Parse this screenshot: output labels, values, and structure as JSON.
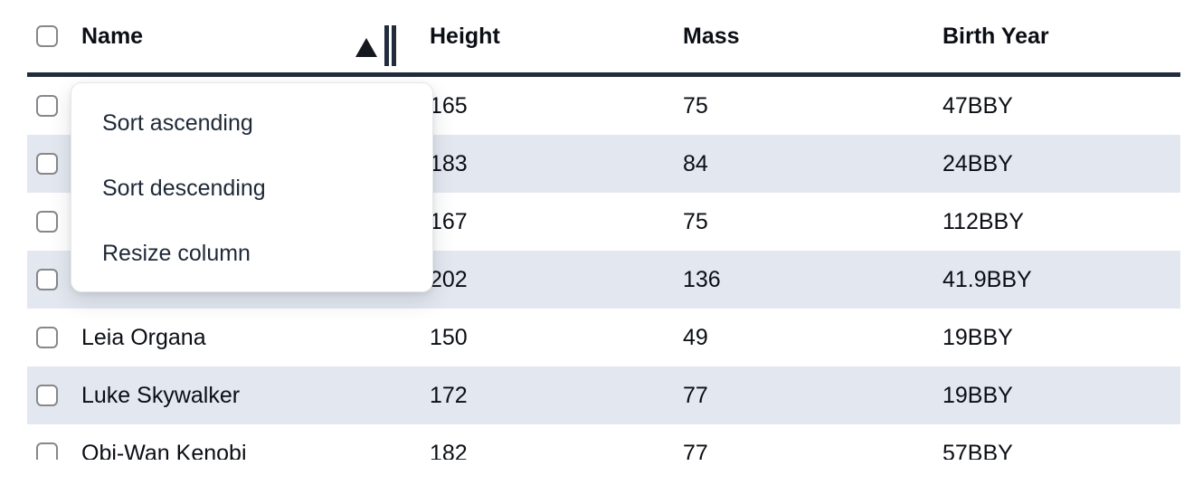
{
  "table": {
    "select_all": {
      "checked": false
    },
    "columns": [
      {
        "label": "Name"
      },
      {
        "label": "Height"
      },
      {
        "label": "Mass"
      },
      {
        "label": "Birth Year"
      }
    ],
    "sort": {
      "column": "Name",
      "direction": "ascending"
    },
    "rows": [
      {
        "name": "",
        "height": "165",
        "mass": "75",
        "birth_year": "47BBY",
        "checked": false
      },
      {
        "name": "",
        "height": "183",
        "mass": "84",
        "birth_year": "24BBY",
        "checked": false
      },
      {
        "name": "",
        "height": "167",
        "mass": "75",
        "birth_year": "112BBY",
        "checked": false
      },
      {
        "name": "",
        "height": "202",
        "mass": "136",
        "birth_year": "41.9BBY",
        "checked": false
      },
      {
        "name": "Leia Organa",
        "height": "150",
        "mass": "49",
        "birth_year": "19BBY",
        "checked": false
      },
      {
        "name": "Luke Skywalker",
        "height": "172",
        "mass": "77",
        "birth_year": "19BBY",
        "checked": false
      },
      {
        "name": "Obi-Wan Kenobi",
        "height": "182",
        "mass": "77",
        "birth_year": "57BBY",
        "checked": false
      }
    ]
  },
  "column_menu": {
    "items": [
      {
        "label": "Sort ascending"
      },
      {
        "label": "Sort descending"
      },
      {
        "label": "Resize column"
      }
    ]
  },
  "colors": {
    "stripe": "#e3e8f0",
    "header_border": "#222c3d",
    "text": "#0b0e14",
    "menu_text": "#1e2937",
    "checkbox_border": "#87878c"
  },
  "icons": {
    "sort_indicator": "ascending-triangle",
    "resize_handle": "double-vertical-bars"
  }
}
